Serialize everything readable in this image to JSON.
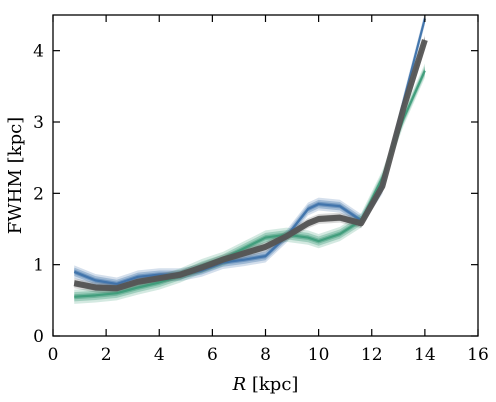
{
  "chart_data": {
    "type": "line",
    "title": "",
    "xlabel_italic": "R",
    "xlabel_rest": " [kpc]",
    "ylabel": "FWHM [kpc]",
    "xlim": [
      0,
      16
    ],
    "ylim": [
      0,
      4.5
    ],
    "xticks": [
      0,
      2,
      4,
      6,
      8,
      10,
      12,
      14,
      16
    ],
    "yticks": [
      0,
      1,
      2,
      3,
      4
    ],
    "grid": false,
    "x": [
      0.8,
      1.6,
      2.4,
      3.2,
      4.0,
      4.8,
      5.6,
      6.4,
      7.2,
      8.0,
      8.8,
      9.6,
      10.0,
      10.8,
      11.6,
      12.4,
      13.2,
      14.0
    ],
    "series": [
      {
        "color": "#3a6fa8",
        "values": [
          0.9,
          0.78,
          0.73,
          0.83,
          0.86,
          0.86,
          0.92,
          1.03,
          1.07,
          1.12,
          1.4,
          1.78,
          1.85,
          1.82,
          1.62,
          2.08,
          3.3,
          4.45
        ],
        "spread": 0.09
      },
      {
        "color": "#3a9a78",
        "values": [
          0.55,
          0.57,
          0.6,
          0.68,
          0.75,
          0.85,
          0.98,
          1.08,
          1.23,
          1.38,
          1.42,
          1.38,
          1.33,
          1.43,
          1.62,
          2.22,
          3.05,
          3.72
        ],
        "spread": 0.1
      },
      {
        "color": "#555555",
        "values": [
          0.74,
          0.68,
          0.67,
          0.76,
          0.81,
          0.86,
          0.96,
          1.07,
          1.16,
          1.25,
          1.4,
          1.58,
          1.64,
          1.66,
          1.58,
          2.1,
          3.2,
          4.15
        ],
        "spread": 0.07
      }
    ]
  }
}
